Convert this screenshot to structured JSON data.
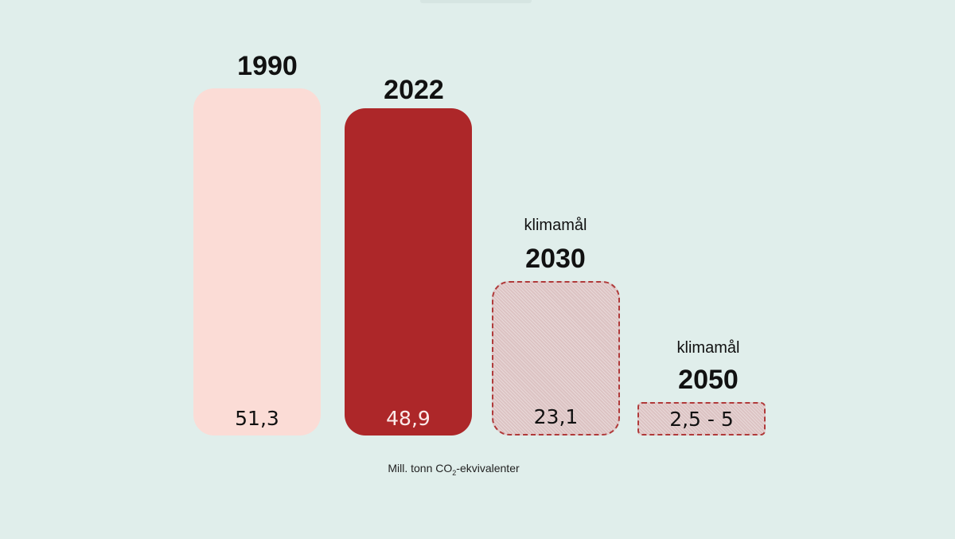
{
  "chart_data": {
    "type": "bar",
    "title": "",
    "categories": [
      "1990",
      "2022",
      "klimamål 2030",
      "klimamål 2050"
    ],
    "values": [
      51.3,
      48.9,
      23.1,
      3.75
    ],
    "value_labels": [
      "51,3",
      "48,9",
      "23,1",
      "2,5 - 5"
    ],
    "range_2050": [
      2.5,
      5
    ],
    "ylabel": "Mill. tonn CO2-ekvivalenter",
    "xlabel": "",
    "grid": false,
    "legend": "none",
    "bar_styles": [
      "solid light pink",
      "solid dark red",
      "hatched dashed-outline target",
      "hatched dashed-outline target"
    ]
  },
  "colors": {
    "background": "#e0eeeb",
    "bar_1990": "#fbdcd6",
    "bar_2022": "#ad2729",
    "target_fill": "#dcc3c3",
    "target_border": "#b03a3a"
  },
  "labels": {
    "y1990": "1990",
    "y2022": "2022",
    "sub2030": "klimamål",
    "y2030": "2030",
    "sub2050": "klimamål",
    "y2050": "2050",
    "v1990": "51,3",
    "v2022": "48,9",
    "v2030": "23,1",
    "v2050": "2,5 - 5",
    "unit_prefix": "Mill. tonn CO",
    "unit_sub": "2",
    "unit_suffix": "-ekvivalenter"
  }
}
